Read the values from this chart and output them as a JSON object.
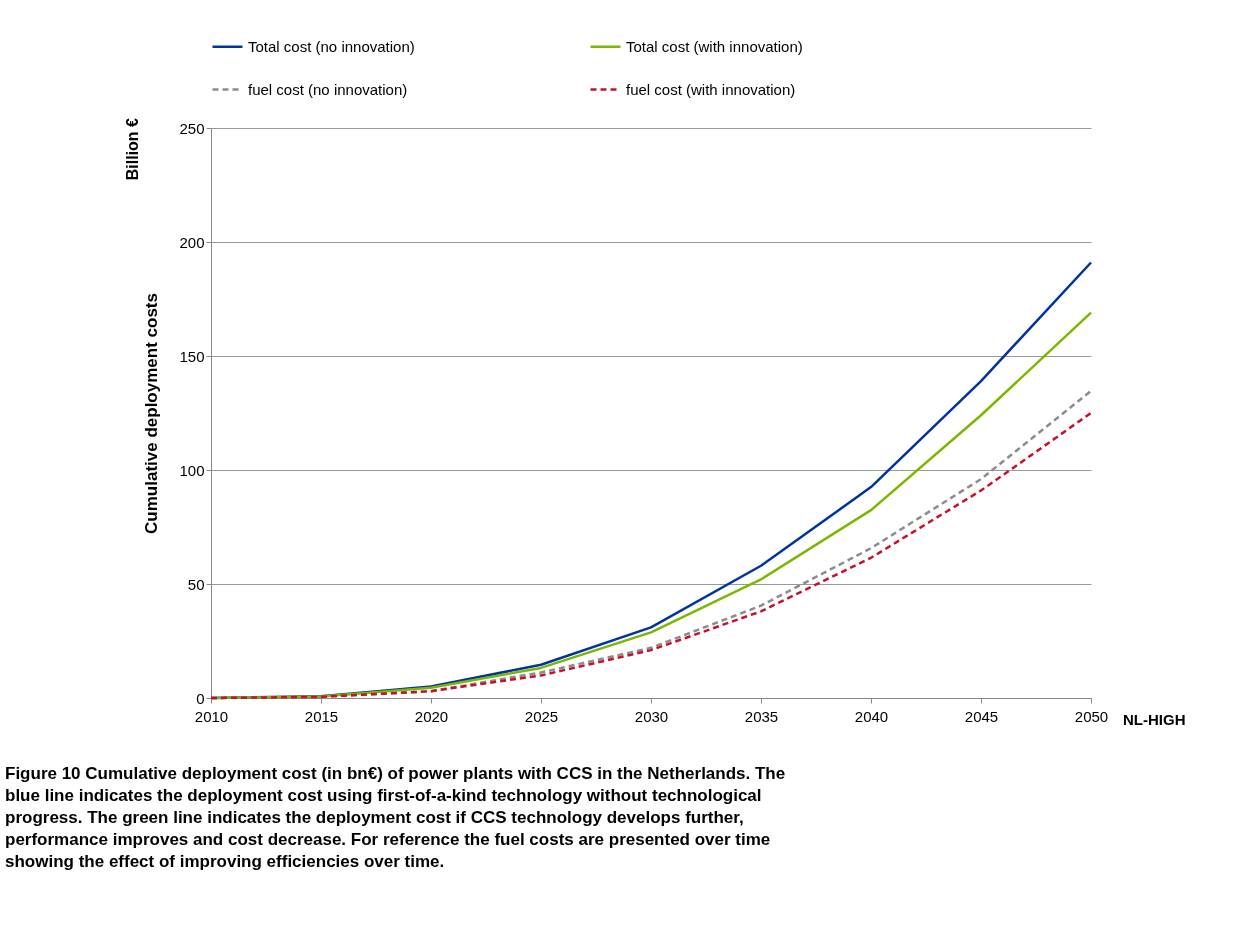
{
  "chart_data": {
    "type": "line",
    "ylabel": "Cumulative deployment costs",
    "x": [
      2010,
      2015,
      2020,
      2025,
      2030,
      2035,
      2040,
      2045,
      2050
    ],
    "xlim": [
      2010,
      2050
    ],
    "xticks": [
      2010,
      2015,
      2020,
      2025,
      2030,
      2035,
      2040,
      2045,
      2050
    ],
    "ylim": [
      0,
      250
    ],
    "yticks": [
      0,
      50,
      100,
      150,
      200,
      250
    ],
    "grid": "y",
    "legend": "top",
    "series": [
      {
        "name": "Total cost (no innovation)",
        "color": "#0033a0",
        "line_style": "solid",
        "values": [
          0,
          0.8,
          5,
          14.6,
          31,
          58,
          92.5,
          139,
          191
        ]
      },
      {
        "name": "Total cost (with innovation)",
        "color": "#7ab800",
        "line_style": "solid",
        "values": [
          0,
          0.7,
          4.5,
          13.2,
          28.8,
          52,
          82.4,
          124,
          169
        ]
      },
      {
        "name": "fuel cost (no innovation)",
        "color": "#8c8c8c",
        "line_style": "dashed",
        "values": [
          0,
          0.5,
          3,
          11.2,
          22,
          40.5,
          65.7,
          96,
          134.7
        ]
      },
      {
        "name": "fuel cost (with innovation)",
        "color": "#c8102e",
        "line_style": "dashed",
        "values": [
          0,
          0.5,
          3,
          9.9,
          21,
          38,
          61.5,
          91,
          125
        ]
      }
    ],
    "annotations": [
      "Billion €",
      "NL-HIGH",
      "Figure 10 Cumulative deployment cost (in bn€) of power plants with CCS in the Netherlands. The blue line indicates the deployment cost using first-of-a-kind technology without technological progress. The green line indicates the deployment cost if CCS technology develops further, performance improves and cost decrease. For reference the fuel costs are presented over time showing the effect of improving efficiencies over time."
    ]
  }
}
